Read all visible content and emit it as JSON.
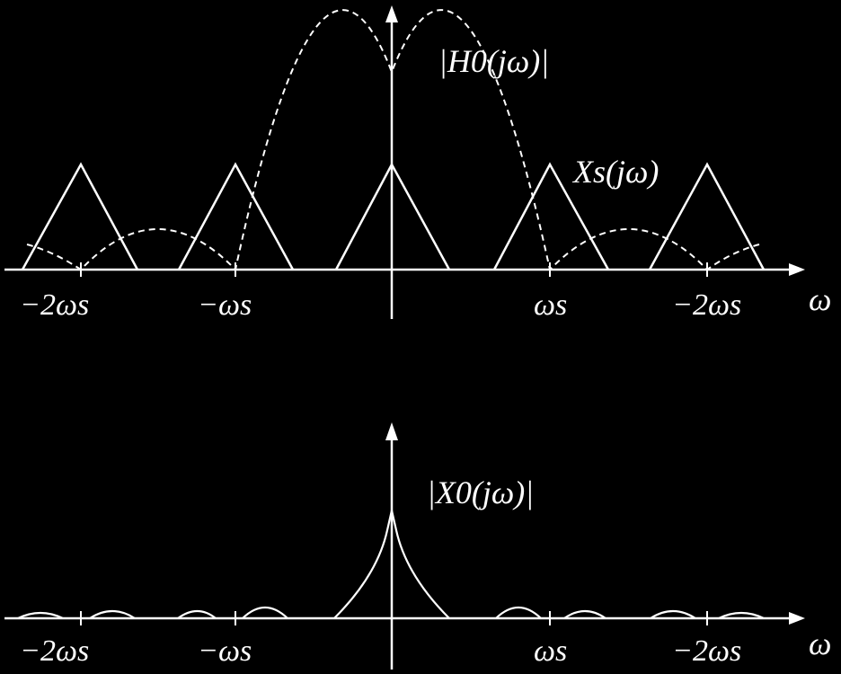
{
  "colors": {
    "background": "#000000",
    "stroke": "#ffffff"
  },
  "top_panel": {
    "tick_labels": [
      "−2ωs",
      "−ωs",
      "ωs",
      "−2ωs"
    ],
    "axis_label": "ω",
    "curve_labels": {
      "hold_response": "|H0(jω)|",
      "sampled_spectrum": "Xs(jω)"
    }
  },
  "bottom_panel": {
    "tick_labels": [
      "−2ωs",
      "−ωs",
      "ωs",
      "−2ωs"
    ],
    "axis_label": "ω",
    "curve_labels": {
      "output_spectrum": "|X0(jω)|"
    }
  },
  "chart_data": [
    {
      "type": "line",
      "x_ticks": [
        "−2ωs",
        "−ωs",
        "ωs",
        "−2ωs"
      ],
      "series": [
        {
          "name": "|H0(jω)|",
          "style": "dashed",
          "shape": "|sinc| with zeros at multiples of ωs"
        },
        {
          "name": "Xs(jω)",
          "style": "solid",
          "shape": "triangles centered at 0, ±ωs, ±2ωs"
        }
      ]
    },
    {
      "type": "line",
      "x_ticks": [
        "−2ωs",
        "−ωs",
        "ωs",
        "−2ωs"
      ],
      "series": [
        {
          "name": "|X0(jω)|",
          "style": "solid",
          "shape": "peak at 0 with small residual lobes"
        }
      ]
    }
  ]
}
